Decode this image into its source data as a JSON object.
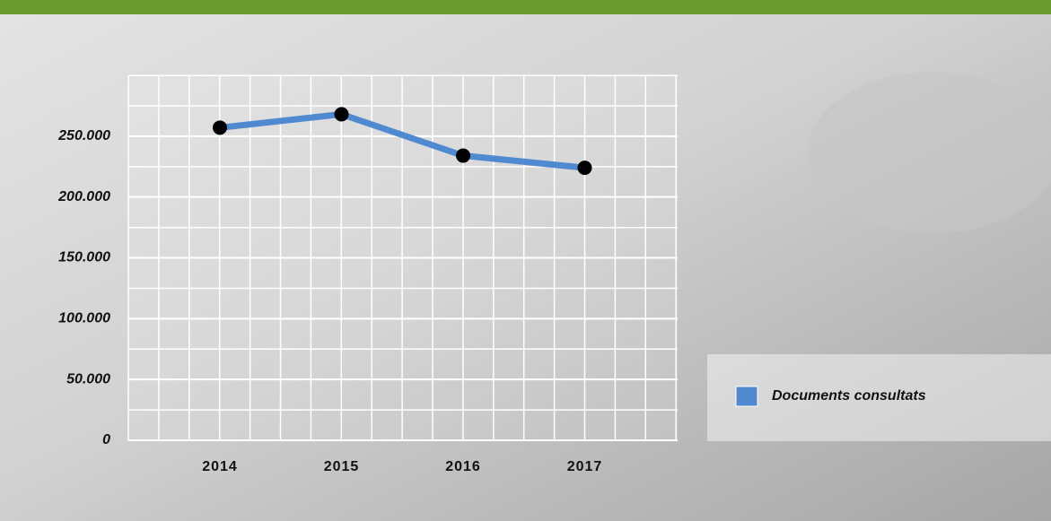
{
  "chart_data": {
    "type": "line",
    "categories": [
      "2014",
      "2015",
      "2016",
      "2017"
    ],
    "series": [
      {
        "name": "Documents consultats",
        "color": "#4f8ad0",
        "values": [
          257000,
          268000,
          234000,
          224000
        ]
      }
    ],
    "ylim": [
      0,
      300000
    ],
    "yticks": [
      0,
      {
        "value": 50000,
        "label": "50.000"
      },
      {
        "value": 100000,
        "label": "100.000"
      },
      {
        "value": 150000,
        "label": "150.000"
      },
      {
        "value": 200000,
        "label": "200.000"
      },
      {
        "value": 250000,
        "label": "250.000"
      }
    ],
    "grid": true,
    "legend": "right"
  }
}
